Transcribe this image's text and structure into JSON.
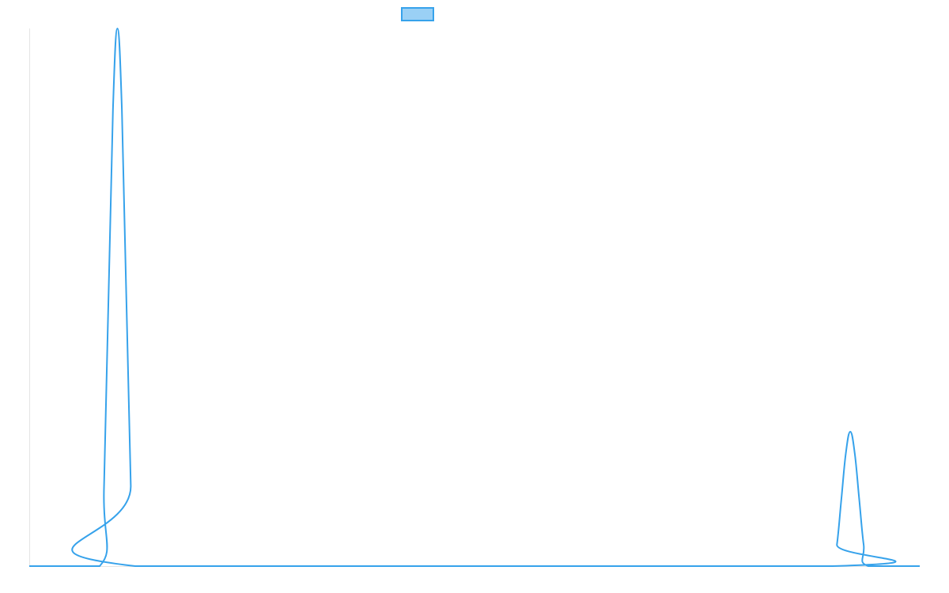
{
  "chart_data": {
    "type": "line",
    "title": "",
    "xlabel": "",
    "ylabel": "",
    "xlim": [
      0,
      100
    ],
    "ylim": [
      0,
      1
    ],
    "grid": false,
    "legend": {
      "placement": "top",
      "entries": [
        {
          "label": ""
        }
      ]
    },
    "colors": {
      "line": "#36a2eb",
      "legend_fill": "#9ad0f5",
      "axis": "#e5e5e5"
    },
    "series": [
      {
        "x": [
          0,
          7.9,
          8.4,
          8.9,
          9.4,
          9.9,
          10.4,
          10.9,
          11.4,
          11.9,
          90.2,
          90.7,
          91.2,
          91.7,
          92.2,
          92.7,
          93.2,
          93.7,
          94.2,
          100
        ],
        "y": [
          0,
          0,
          0.15,
          0.5,
          0.85,
          1,
          0.85,
          0.5,
          0.15,
          0,
          0,
          0.04,
          0.125,
          0.21,
          0.25,
          0.21,
          0.125,
          0.04,
          0,
          0
        ]
      }
    ]
  }
}
